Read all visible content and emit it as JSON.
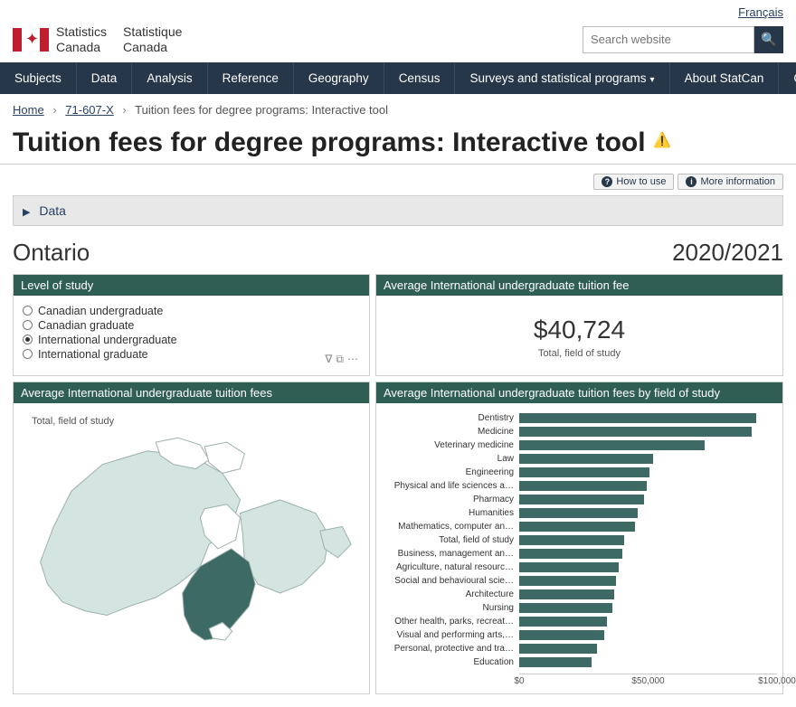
{
  "lang_link": "Français",
  "brand": {
    "en1": "Statistics",
    "en2": "Canada",
    "fr1": "Statistique",
    "fr2": "Canada"
  },
  "search_placeholder": "Search website",
  "nav": [
    "Subjects",
    "Data",
    "Analysis",
    "Reference",
    "Geography",
    "Census",
    "Surveys and statistical programs",
    "About StatCan",
    "Canada.ca"
  ],
  "nav_dropdown_index": 6,
  "breadcrumb": {
    "home": "Home",
    "cat": "71-607-X",
    "current": "Tuition fees for degree programs: Interactive tool"
  },
  "page_title": "Tuition fees for degree programs: Interactive tool",
  "actions": {
    "howto": "How to use",
    "more": "More information"
  },
  "data_toggle": "Data",
  "region": "Ontario",
  "year": "2020/2021",
  "level_panel": {
    "title": "Level of study",
    "options": [
      "Canadian undergraduate",
      "Canadian graduate",
      "International undergraduate",
      "International graduate"
    ],
    "selected_index": 2
  },
  "metric_panel": {
    "title": "Average International undergraduate tuition fee",
    "value": "$40,724",
    "subtitle": "Total, field of study"
  },
  "map_panel": {
    "title": "Average International undergraduate tuition fees",
    "caption": "Total, field of study",
    "colors": {
      "base": "#d4e4e1",
      "selected": "#3d6a64",
      "stroke": "#9ab0ac",
      "land_bg": "#ffffff"
    }
  },
  "chart_panel": {
    "title": "Average International undergraduate tuition fees by field of study",
    "x_max": 100000,
    "x_ticks": [
      0,
      50000,
      100000
    ],
    "x_tick_labels": [
      "$0",
      "$50,000",
      "$100,000"
    ],
    "bar_color": "#3d6a64",
    "label_fontsize": 10,
    "series": [
      {
        "label": "Dentistry",
        "value": 92000
      },
      {
        "label": "Medicine",
        "value": 90000
      },
      {
        "label": "Veterinary medicine",
        "value": 72000
      },
      {
        "label": "Law",
        "value": 52000
      },
      {
        "label": "Engineering",
        "value": 50500
      },
      {
        "label": "Physical and life sciences a…",
        "value": 49500
      },
      {
        "label": "Pharmacy",
        "value": 48500
      },
      {
        "label": "Humanities",
        "value": 46000
      },
      {
        "label": "Mathematics, computer an…",
        "value": 45000
      },
      {
        "label": "Total, field of study",
        "value": 40724
      },
      {
        "label": "Business, management an…",
        "value": 40000
      },
      {
        "label": "Agriculture, natural resourc…",
        "value": 38500
      },
      {
        "label": "Social and behavioural scie…",
        "value": 37500
      },
      {
        "label": "Architecture",
        "value": 37000
      },
      {
        "label": "Nursing",
        "value": 36000
      },
      {
        "label": "Other health, parks, recreat…",
        "value": 34000
      },
      {
        "label": "Visual and performing arts,…",
        "value": 33000
      },
      {
        "label": "Personal, protective and tra…",
        "value": 30000
      },
      {
        "label": "Education",
        "value": 28000
      }
    ]
  }
}
